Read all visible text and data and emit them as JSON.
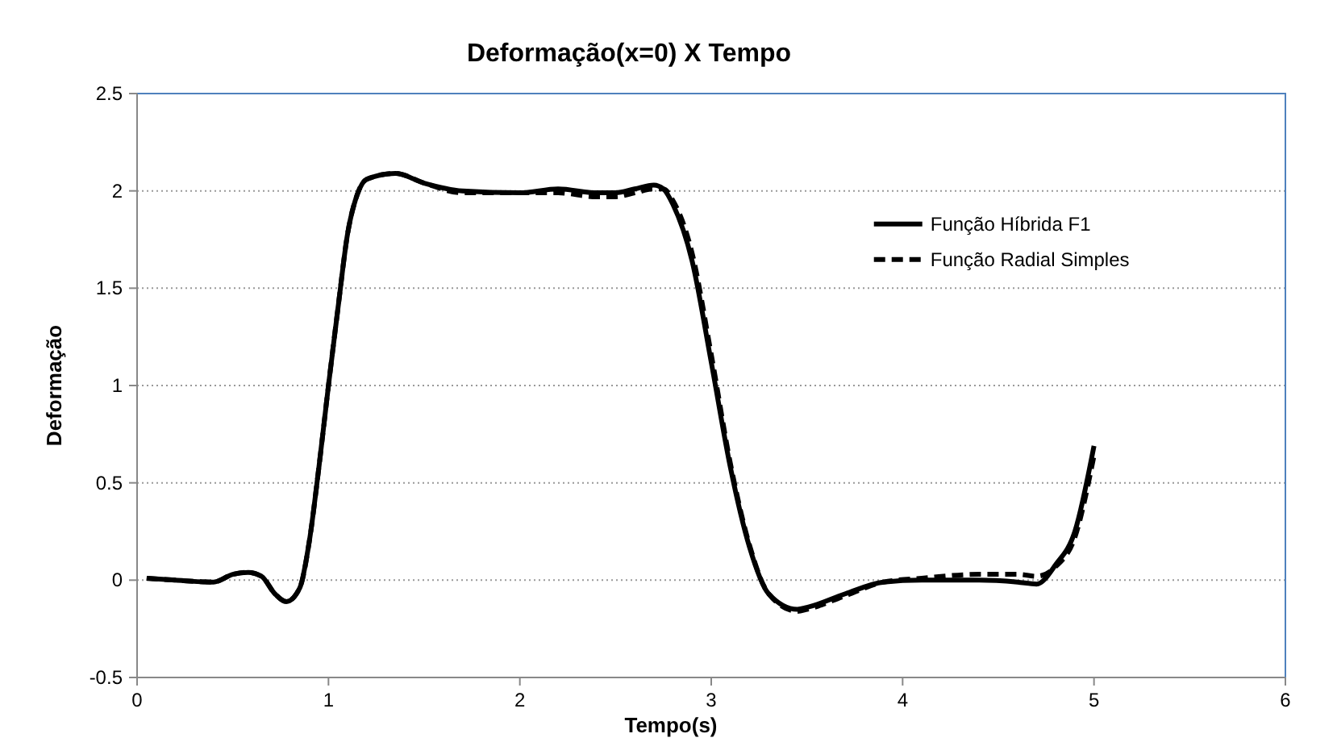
{
  "chart_data": {
    "type": "line",
    "title": "Deformação(x=0)  X  Tempo",
    "xlabel": "Tempo(s)",
    "ylabel": "Deformação",
    "xlim": [
      0,
      6
    ],
    "xticks": [
      0,
      1,
      2,
      3,
      4,
      5,
      6
    ],
    "ylim": [
      -0.5,
      2.5
    ],
    "yticks": [
      -0.5,
      0,
      0.5,
      1,
      1.5,
      2,
      2.5
    ],
    "grid": "y",
    "legend": "top right",
    "marker": "none",
    "series": [
      {
        "name": "Função Híbrida F1",
        "color": "#000000",
        "line_style": "solid",
        "x": [
          0.05,
          0.2,
          0.4,
          0.5,
          0.58,
          0.65,
          0.72,
          0.78,
          0.85,
          0.9,
          0.95,
          1.0,
          1.05,
          1.1,
          1.15,
          1.2,
          1.35,
          1.5,
          1.7,
          2.0,
          2.2,
          2.4,
          2.5,
          2.6,
          2.7,
          2.75,
          2.8,
          2.9,
          3.0,
          3.1,
          3.2,
          3.3,
          3.45,
          3.5,
          3.7,
          3.9,
          4.1,
          4.4,
          4.6,
          4.7,
          4.8,
          4.9,
          5.0
        ],
        "values": [
          0.01,
          0,
          -0.01,
          0.03,
          0.04,
          0.02,
          -0.07,
          -0.11,
          -0.04,
          0.2,
          0.58,
          1.0,
          1.4,
          1.78,
          1.98,
          2.06,
          2.09,
          2.04,
          2.0,
          1.99,
          2.01,
          1.99,
          1.99,
          2.01,
          2.03,
          2.01,
          1.93,
          1.64,
          1.12,
          0.58,
          0.17,
          -0.07,
          -0.15,
          -0.14,
          -0.07,
          -0.01,
          0,
          0,
          -0.01,
          -0.02,
          0.08,
          0.25,
          0.69
        ]
      },
      {
        "name": "Função Radial Simples",
        "color": "#000000",
        "line_style": "dashed",
        "x": [
          0.05,
          0.2,
          0.4,
          0.5,
          0.58,
          0.65,
          0.72,
          0.78,
          0.85,
          0.9,
          0.95,
          1.0,
          1.05,
          1.1,
          1.15,
          1.2,
          1.35,
          1.5,
          1.7,
          2.0,
          2.2,
          2.4,
          2.5,
          2.6,
          2.7,
          2.75,
          2.8,
          2.9,
          3.0,
          3.1,
          3.2,
          3.3,
          3.45,
          3.5,
          3.7,
          3.9,
          4.1,
          4.4,
          4.6,
          4.7,
          4.8,
          4.9,
          5.0
        ],
        "values": [
          0.01,
          0,
          -0.01,
          0.03,
          0.04,
          0.02,
          -0.07,
          -0.11,
          -0.04,
          0.2,
          0.58,
          1.0,
          1.4,
          1.78,
          1.98,
          2.06,
          2.09,
          2.04,
          1.99,
          1.99,
          1.99,
          1.97,
          1.97,
          1.99,
          2.01,
          2.01,
          1.95,
          1.68,
          1.16,
          0.6,
          0.18,
          -0.07,
          -0.16,
          -0.15,
          -0.08,
          -0.01,
          0.01,
          0.03,
          0.03,
          0.02,
          0.07,
          0.22,
          0.64
        ]
      }
    ]
  }
}
